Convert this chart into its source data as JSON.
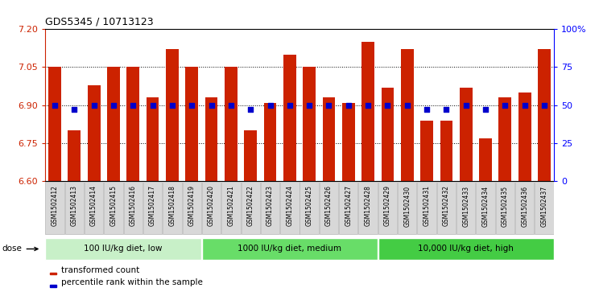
{
  "title": "GDS5345 / 10713123",
  "samples": [
    "GSM1502412",
    "GSM1502413",
    "GSM1502414",
    "GSM1502415",
    "GSM1502416",
    "GSM1502417",
    "GSM1502418",
    "GSM1502419",
    "GSM1502420",
    "GSM1502421",
    "GSM1502422",
    "GSM1502423",
    "GSM1502424",
    "GSM1502425",
    "GSM1502426",
    "GSM1502427",
    "GSM1502428",
    "GSM1502429",
    "GSM1502430",
    "GSM1502431",
    "GSM1502432",
    "GSM1502433",
    "GSM1502434",
    "GSM1502435",
    "GSM1502436",
    "GSM1502437"
  ],
  "bar_values": [
    7.05,
    6.8,
    6.98,
    7.05,
    7.05,
    6.93,
    7.12,
    7.05,
    6.93,
    7.05,
    6.8,
    6.91,
    7.1,
    7.05,
    6.93,
    6.91,
    7.15,
    6.97,
    7.12,
    6.84,
    6.84,
    6.97,
    6.77,
    6.93,
    6.95,
    7.12
  ],
  "percentile_values": [
    50,
    47,
    50,
    50,
    50,
    50,
    50,
    50,
    50,
    50,
    47,
    50,
    50,
    50,
    50,
    50,
    50,
    50,
    50,
    47,
    47,
    50,
    47,
    50,
    50,
    50
  ],
  "groups": [
    {
      "label": "100 IU/kg diet, low",
      "start": 0,
      "end": 8,
      "color": "#c8f0c8"
    },
    {
      "label": "1000 IU/kg diet, medium",
      "start": 8,
      "end": 17,
      "color": "#68dd68"
    },
    {
      "label": "10,000 IU/kg diet, high",
      "start": 17,
      "end": 26,
      "color": "#44cc44"
    }
  ],
  "ylim": [
    6.6,
    7.2
  ],
  "y_ticks": [
    6.6,
    6.75,
    6.9,
    7.05,
    7.2
  ],
  "right_yticks": [
    0,
    25,
    50,
    75,
    100
  ],
  "bar_color": "#CC2200",
  "dot_color": "#0000CC",
  "bar_width": 0.65,
  "gridline_values": [
    6.75,
    6.9,
    7.05
  ],
  "legend_items": [
    {
      "label": "transformed count",
      "color": "#CC2200"
    },
    {
      "label": "percentile rank within the sample",
      "color": "#0000CC"
    }
  ]
}
